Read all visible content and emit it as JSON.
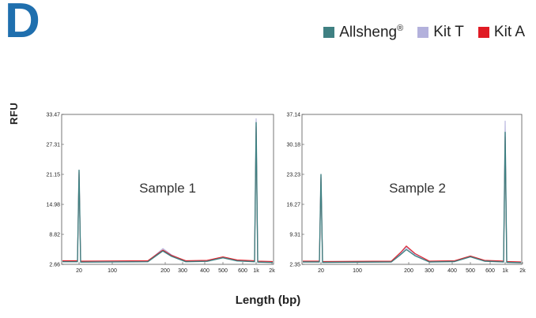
{
  "panel_letter": "D",
  "legend": [
    {
      "label": "Allsheng",
      "sup": "®",
      "color": "#3f8082"
    },
    {
      "label": "Kit T",
      "sup": "",
      "color": "#b3b1dc"
    },
    {
      "label": "Kit A",
      "sup": "",
      "color": "#e01b24"
    }
  ],
  "ylabel": "RFU",
  "xlabel": "Length (bp)",
  "chart_data": [
    {
      "type": "line",
      "title": "Sample 1",
      "x_ticks": [
        "20",
        "100",
        "200",
        "300",
        "400",
        "500",
        "600",
        "1k",
        "2k"
      ],
      "y_ticks": [
        "33.47",
        "27.31",
        "21.15",
        "14.98",
        "8.82",
        "2.66"
      ],
      "ylim": [
        2.66,
        33.47
      ],
      "grid": false,
      "series": [
        {
          "name": "Allsheng",
          "color": "#3f8082",
          "peaks": [
            {
              "x": "20",
              "y": 22.0
            },
            {
              "x": "200",
              "y": 5.4
            },
            {
              "x": "500",
              "y": 4.0
            },
            {
              "x": "1k",
              "y": 31.8
            }
          ],
          "baseline": 3.2
        },
        {
          "name": "Kit T",
          "color": "#b3b1dc",
          "peaks": [
            {
              "x": "20",
              "y": 21.8
            },
            {
              "x": "200",
              "y": 5.9
            },
            {
              "x": "500",
              "y": 4.1
            },
            {
              "x": "1k",
              "y": 32.6
            }
          ],
          "baseline": 3.3
        },
        {
          "name": "Kit A",
          "color": "#e01b24",
          "peaks": [
            {
              "x": "20",
              "y": 21.6
            },
            {
              "x": "200",
              "y": 5.6
            },
            {
              "x": "500",
              "y": 4.2
            },
            {
              "x": "1k",
              "y": 31.0
            }
          ],
          "baseline": 3.4
        }
      ]
    },
    {
      "type": "line",
      "title": "Sample 2",
      "x_ticks": [
        "20",
        "100",
        "200",
        "300",
        "400",
        "500",
        "600",
        "1k",
        "2k"
      ],
      "y_ticks": [
        "37.14",
        "30.18",
        "23.23",
        "16.27",
        "9.31",
        "2.35"
      ],
      "ylim": [
        2.35,
        37.14
      ],
      "grid": false,
      "series": [
        {
          "name": "Allsheng",
          "color": "#3f8082",
          "peaks": [
            {
              "x": "20",
              "y": 23.2
            },
            {
              "x": "200",
              "y": 5.8
            },
            {
              "x": "500",
              "y": 4.1
            },
            {
              "x": "1k",
              "y": 33.0
            }
          ],
          "baseline": 2.9
        },
        {
          "name": "Kit T",
          "color": "#b3b1dc",
          "peaks": [
            {
              "x": "20",
              "y": 23.0
            },
            {
              "x": "200",
              "y": 6.3
            },
            {
              "x": "500",
              "y": 4.2
            },
            {
              "x": "1k",
              "y": 35.6
            }
          ],
          "baseline": 3.0
        },
        {
          "name": "Kit A",
          "color": "#e01b24",
          "peaks": [
            {
              "x": "20",
              "y": 22.6
            },
            {
              "x": "200",
              "y": 6.6
            },
            {
              "x": "500",
              "y": 4.3
            },
            {
              "x": "1k",
              "y": 32.0
            }
          ],
          "baseline": 3.1
        }
      ]
    }
  ]
}
